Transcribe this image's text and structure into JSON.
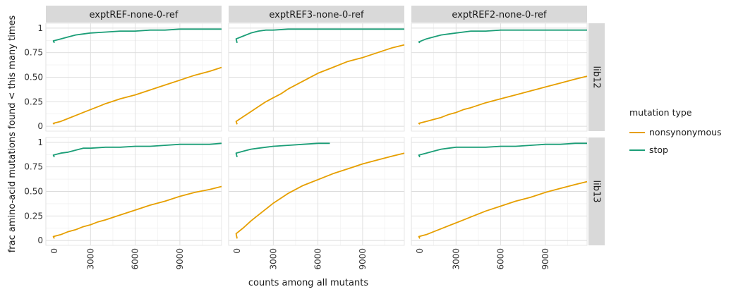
{
  "chart_data": {
    "type": "line",
    "title": "",
    "xlabel": "counts among all mutants",
    "ylabel": "frac amino-acid mutations found < this many times",
    "xlim": [
      0,
      11800
    ],
    "ylim": [
      0,
      1
    ],
    "x_ticks": [
      0,
      3000,
      6000,
      9000
    ],
    "x_tick_labels": [
      "0",
      "3000",
      "6000",
      "9000"
    ],
    "y_ticks": [
      0,
      0.25,
      0.5,
      0.75,
      1
    ],
    "y_tick_labels": [
      "0",
      "0.25",
      "0.50",
      "0.75",
      "1"
    ],
    "grid": true,
    "col_facets": [
      "exptREF-none-0-ref",
      "exptREF3-none-0-ref",
      "exptREF2-none-0-ref"
    ],
    "row_facets": [
      "lib12",
      "lib13"
    ],
    "legend": {
      "title": "mutation type",
      "position": "right",
      "entries": [
        {
          "name": "nonsynonymous",
          "color": "#E69F00"
        },
        {
          "name": "stop",
          "color": "#1B9E77"
        }
      ]
    },
    "panels": [
      {
        "col": "exptREF-none-0-ref",
        "row": "lib12",
        "series": [
          {
            "name": "nonsynonymous",
            "x": [
              0,
              500,
              1000,
              1500,
              2000,
              2500,
              3000,
              3500,
              4000,
              5000,
              6000,
              7000,
              8000,
              9000,
              10000,
              11000,
              11800
            ],
            "y": [
              0.02,
              0.03,
              0.05,
              0.08,
              0.11,
              0.14,
              0.17,
              0.2,
              0.23,
              0.28,
              0.32,
              0.37,
              0.42,
              0.47,
              0.52,
              0.56,
              0.6
            ]
          },
          {
            "name": "stop",
            "x": [
              0,
              500,
              1000,
              1500,
              2000,
              2500,
              3000,
              4000,
              5000,
              6000,
              7000,
              8000,
              9000,
              10000,
              11000,
              11800
            ],
            "y": [
              0.85,
              0.87,
              0.89,
              0.91,
              0.93,
              0.94,
              0.95,
              0.96,
              0.97,
              0.97,
              0.98,
              0.98,
              0.99,
              0.99,
              0.99,
              0.99
            ]
          }
        ]
      },
      {
        "col": "exptREF3-none-0-ref",
        "row": "lib12",
        "series": [
          {
            "name": "nonsynonymous",
            "x": [
              0,
              500,
              1000,
              1500,
              2000,
              2500,
              3000,
              3500,
              4000,
              5000,
              6000,
              7000,
              8000,
              9000,
              10000,
              11000,
              11800
            ],
            "y": [
              0.02,
              0.05,
              0.1,
              0.15,
              0.2,
              0.25,
              0.29,
              0.33,
              0.38,
              0.46,
              0.54,
              0.6,
              0.66,
              0.7,
              0.75,
              0.8,
              0.83
            ]
          },
          {
            "name": "stop",
            "x": [
              0,
              500,
              1000,
              1500,
              2000,
              2500,
              3000,
              4000,
              5000,
              6000,
              7000,
              8000,
              9000,
              10000,
              11000,
              11800
            ],
            "y": [
              0.85,
              0.89,
              0.92,
              0.95,
              0.97,
              0.98,
              0.98,
              0.99,
              0.99,
              0.99,
              0.99,
              0.99,
              0.99,
              0.99,
              0.99,
              0.99
            ]
          }
        ]
      },
      {
        "col": "exptREF2-none-0-ref",
        "row": "lib12",
        "series": [
          {
            "name": "nonsynonymous",
            "x": [
              0,
              500,
              1000,
              1500,
              2000,
              2500,
              3000,
              3500,
              4000,
              5000,
              6000,
              7000,
              8000,
              9000,
              10000,
              11000,
              11800
            ],
            "y": [
              0.02,
              0.03,
              0.05,
              0.07,
              0.09,
              0.12,
              0.14,
              0.17,
              0.19,
              0.24,
              0.28,
              0.32,
              0.36,
              0.4,
              0.44,
              0.48,
              0.51
            ]
          },
          {
            "name": "stop",
            "x": [
              0,
              500,
              1000,
              1500,
              2000,
              2500,
              3000,
              4000,
              5000,
              6000,
              7000,
              8000,
              9000,
              10000,
              11000,
              11800
            ],
            "y": [
              0.85,
              0.86,
              0.89,
              0.91,
              0.93,
              0.94,
              0.95,
              0.97,
              0.97,
              0.98,
              0.98,
              0.98,
              0.98,
              0.98,
              0.98,
              0.98
            ]
          }
        ]
      },
      {
        "col": "exptREF-none-0-ref",
        "row": "lib13",
        "series": [
          {
            "name": "nonsynonymous",
            "x": [
              0,
              500,
              1000,
              1500,
              2000,
              2500,
              3000,
              3500,
              4000,
              5000,
              6000,
              7000,
              8000,
              9000,
              10000,
              11000,
              11800
            ],
            "y": [
              0.02,
              0.04,
              0.06,
              0.09,
              0.11,
              0.14,
              0.16,
              0.19,
              0.21,
              0.26,
              0.31,
              0.36,
              0.4,
              0.45,
              0.49,
              0.52,
              0.55
            ]
          },
          {
            "name": "stop",
            "x": [
              0,
              500,
              1000,
              1500,
              2000,
              2500,
              3000,
              4000,
              5000,
              6000,
              7000,
              8000,
              9000,
              10000,
              11000,
              11800
            ],
            "y": [
              0.85,
              0.87,
              0.89,
              0.9,
              0.92,
              0.94,
              0.94,
              0.95,
              0.95,
              0.96,
              0.96,
              0.97,
              0.98,
              0.98,
              0.98,
              0.99
            ]
          }
        ]
      },
      {
        "col": "exptREF3-none-0-ref",
        "row": "lib13",
        "series": [
          {
            "name": "nonsynonymous",
            "x": [
              0,
              500,
              1000,
              1500,
              2000,
              2500,
              3000,
              3500,
              4000,
              5000,
              6000,
              7000,
              8000,
              9000,
              10000,
              11000,
              11800
            ],
            "y": [
              0.02,
              0.07,
              0.13,
              0.2,
              0.26,
              0.32,
              0.38,
              0.43,
              0.48,
              0.56,
              0.62,
              0.68,
              0.73,
              0.78,
              0.82,
              0.86,
              0.89
            ]
          },
          {
            "name": "stop",
            "x": [
              0,
              500,
              1000,
              1500,
              2000,
              2500,
              3000,
              4000,
              5000,
              6000,
              6800
            ],
            "y": [
              0.85,
              0.89,
              0.91,
              0.93,
              0.94,
              0.95,
              0.96,
              0.97,
              0.98,
              0.99,
              0.99
            ]
          }
        ]
      },
      {
        "col": "exptREF2-none-0-ref",
        "row": "lib13",
        "series": [
          {
            "name": "nonsynonymous",
            "x": [
              0,
              500,
              1000,
              1500,
              2000,
              2500,
              3000,
              3500,
              4000,
              5000,
              6000,
              7000,
              8000,
              9000,
              10000,
              11000,
              11800
            ],
            "y": [
              0.02,
              0.04,
              0.06,
              0.09,
              0.12,
              0.15,
              0.18,
              0.21,
              0.24,
              0.3,
              0.35,
              0.4,
              0.44,
              0.49,
              0.53,
              0.57,
              0.6
            ]
          },
          {
            "name": "stop",
            "x": [
              0,
              500,
              1000,
              1500,
              2000,
              2500,
              3000,
              4000,
              5000,
              6000,
              7000,
              8000,
              9000,
              10000,
              11000,
              11800
            ],
            "y": [
              0.85,
              0.87,
              0.89,
              0.91,
              0.93,
              0.94,
              0.95,
              0.95,
              0.95,
              0.96,
              0.96,
              0.97,
              0.98,
              0.98,
              0.99,
              0.99
            ]
          }
        ]
      }
    ]
  }
}
